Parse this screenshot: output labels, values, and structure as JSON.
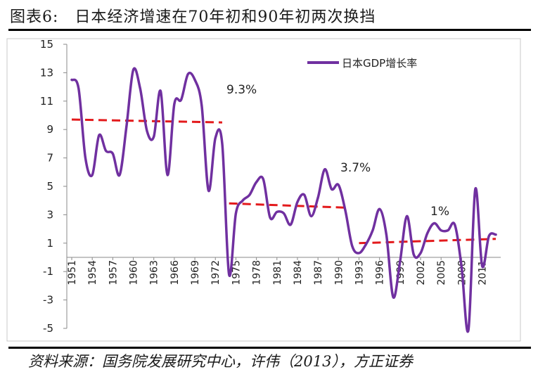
{
  "header": {
    "title": "图表6:　日本经济增速在70年初和90年初两次换挡"
  },
  "footer": {
    "source": "资料来源：国务院发展研究中心，许伟（2013），方正证券"
  },
  "chart_data": {
    "type": "line",
    "title": "",
    "xlabel": "",
    "ylabel": "",
    "ylim": [
      -5,
      15
    ],
    "yticks": [
      -5,
      -3,
      -1,
      1,
      3,
      5,
      7,
      9,
      11,
      13,
      15
    ],
    "xlim": [
      1951,
      2013
    ],
    "xticks": [
      1951,
      1954,
      1957,
      1960,
      1963,
      1966,
      1969,
      1972,
      1975,
      1978,
      1981,
      1984,
      1987,
      1990,
      1993,
      1996,
      1999,
      2002,
      2005,
      2008,
      2011
    ],
    "grid": false,
    "legend": {
      "position": "top-right",
      "label": "日本GDP增长率"
    },
    "series": [
      {
        "name": "日本GDP增长率",
        "color": "#7030a0",
        "x": [
          1951,
          1952,
          1953,
          1954,
          1955,
          1956,
          1957,
          1958,
          1959,
          1960,
          1961,
          1962,
          1963,
          1964,
          1965,
          1966,
          1967,
          1968,
          1969,
          1970,
          1971,
          1972,
          1973,
          1974,
          1975,
          1976,
          1977,
          1978,
          1979,
          1980,
          1981,
          1982,
          1983,
          1984,
          1985,
          1986,
          1987,
          1988,
          1989,
          1990,
          1991,
          1992,
          1993,
          1994,
          1995,
          1996,
          1997,
          1998,
          1999,
          2000,
          2001,
          2002,
          2003,
          2004,
          2005,
          2006,
          2007,
          2008,
          2009,
          2010,
          2011,
          2012,
          2013
        ],
        "values": [
          12.5,
          11.9,
          7.0,
          5.8,
          8.6,
          7.5,
          7.3,
          5.8,
          9.2,
          13.2,
          11.9,
          8.9,
          8.5,
          11.7,
          5.8,
          10.8,
          11.1,
          12.9,
          12.5,
          10.7,
          4.7,
          8.4,
          8.0,
          -1.2,
          3.1,
          4.0,
          4.4,
          5.3,
          5.5,
          2.8,
          3.2,
          3.1,
          2.3,
          3.9,
          4.4,
          2.9,
          4.2,
          6.2,
          4.8,
          5.1,
          3.3,
          0.8,
          0.3,
          0.9,
          1.9,
          3.4,
          1.6,
          -2.8,
          -0.3,
          2.9,
          0.2,
          0.3,
          1.7,
          2.4,
          1.9,
          1.9,
          2.3,
          -0.7,
          -5.1,
          4.8,
          -0.6,
          1.5,
          1.6
        ]
      }
    ],
    "trend_lines": [
      {
        "label": "9.3%",
        "color": "#e31a1c",
        "x_start": 1951,
        "x_end": 1973,
        "y_start": 9.7,
        "y_end": 9.5
      },
      {
        "label": "3.7%",
        "color": "#e31a1c",
        "x_start": 1974,
        "x_end": 1991,
        "y_start": 3.8,
        "y_end": 3.5
      },
      {
        "label": "1%",
        "color": "#e31a1c",
        "x_start": 1993,
        "x_end": 2013,
        "y_start": 1.0,
        "y_end": 1.3
      }
    ]
  }
}
